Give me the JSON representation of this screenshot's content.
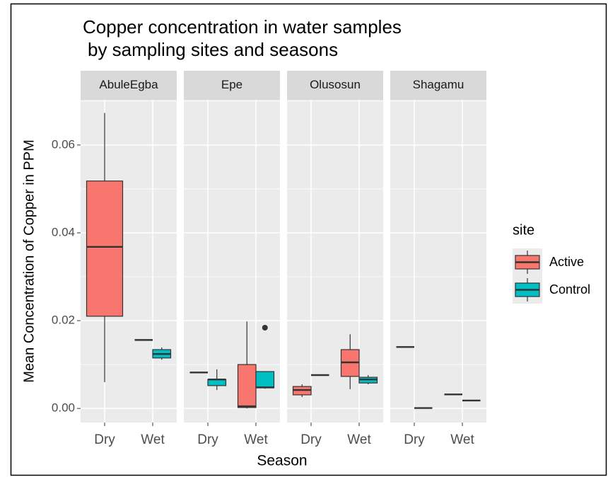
{
  "chart_data": {
    "type": "boxplot",
    "title": [
      "Copper concentration in water samples",
      "by sampling sites and seasons"
    ],
    "x_label": "Season",
    "y_label": "Mean Concentration of Copper in PPM",
    "legend_title": "site",
    "categories": [
      "Dry",
      "Wet"
    ],
    "series": [
      {
        "name": "Active",
        "color": "#F8766D"
      },
      {
        "name": "Control",
        "color": "#00BFC4"
      }
    ],
    "ylim": [
      -0.0032,
      0.0703
    ],
    "yticks": [
      {
        "value": 0,
        "label": "0.00"
      },
      {
        "value": 0.02,
        "label": "0.02"
      },
      {
        "value": 0.04,
        "label": "0.04"
      },
      {
        "value": 0.06,
        "label": "0.06"
      }
    ],
    "grid": true,
    "panels": [
      {
        "name": "AbuleEgba",
        "boxes": [
          [
            {
              "min": 0.006,
              "q1": 0.021,
              "median": 0.0368,
              "q3": 0.0518,
              "max": 0.0673,
              "outliers": []
            },
            null
          ],
          [
            {
              "min": 0.0156,
              "q1": 0.0156,
              "median": 0.0156,
              "q3": 0.0156,
              "max": 0.0156,
              "outliers": []
            },
            {
              "min": 0.0111,
              "q1": 0.0115,
              "median": 0.0124,
              "q3": 0.0134,
              "max": 0.0139,
              "outliers": []
            }
          ]
        ]
      },
      {
        "name": "Epe",
        "boxes": [
          [
            {
              "min": 0.0082,
              "q1": 0.0082,
              "median": 0.0082,
              "q3": 0.0082,
              "max": 0.0082,
              "outliers": []
            },
            {
              "min": 0.0042,
              "q1": 0.0052,
              "median": 0.0066,
              "q3": 0.0066,
              "max": 0.0089,
              "outliers": []
            }
          ],
          [
            {
              "min": 0,
              "q1": 0.0002,
              "median": 0.0005,
              "q3": 0.01,
              "max": 0.0198,
              "outliers": []
            },
            {
              "min": 0.0045,
              "q1": 0.0047,
              "median": 0.0048,
              "q3": 0.0084,
              "max": 0.0084,
              "outliers": [
                0.0184
              ]
            }
          ]
        ]
      },
      {
        "name": "Olusosun",
        "boxes": [
          [
            {
              "min": 0.0026,
              "q1": 0.0031,
              "median": 0.0042,
              "q3": 0.005,
              "max": 0.0055,
              "outliers": []
            },
            {
              "min": 0.0076,
              "q1": 0.0076,
              "median": 0.0076,
              "q3": 0.0076,
              "max": 0.0076,
              "outliers": []
            }
          ],
          [
            {
              "min": 0.0044,
              "q1": 0.0073,
              "median": 0.0105,
              "q3": 0.0134,
              "max": 0.0169,
              "outliers": []
            },
            {
              "min": 0.0055,
              "q1": 0.0058,
              "median": 0.0066,
              "q3": 0.0071,
              "max": 0.0076,
              "outliers": []
            }
          ]
        ]
      },
      {
        "name": "Shagamu",
        "boxes": [
          [
            {
              "min": 0.014,
              "q1": 0.014,
              "median": 0.014,
              "q3": 0.014,
              "max": 0.014,
              "outliers": []
            },
            {
              "min": 0.0001,
              "q1": 0.0001,
              "median": 0.0001,
              "q3": 0.0001,
              "max": 0.0001,
              "outliers": []
            }
          ],
          [
            {
              "min": 0.0032,
              "q1": 0.0032,
              "median": 0.0032,
              "q3": 0.0032,
              "max": 0.0032,
              "outliers": []
            },
            {
              "min": 0.0018,
              "q1": 0.0018,
              "median": 0.0018,
              "q3": 0.0018,
              "max": 0.0018,
              "outliers": []
            }
          ]
        ]
      }
    ]
  }
}
